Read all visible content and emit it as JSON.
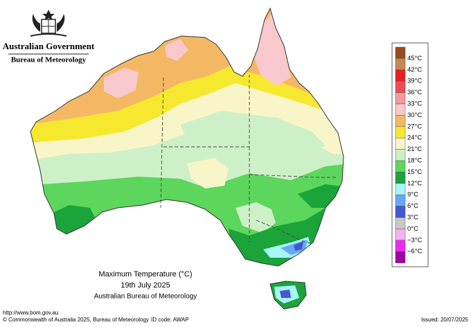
{
  "header": {
    "government": "Australian Government",
    "agency": "Bureau of Meteorology"
  },
  "caption": {
    "title": "Maximum Temperature (°C)",
    "date": "19th July 2025",
    "source": "Australian Bureau of Meteorology"
  },
  "footer": {
    "url": "http://www.bom.gov.au",
    "copyright": "© Commonwealth of Australia 2025, Bureau of Meteorology",
    "id_code": "ID code: AWAP",
    "issued": "Issued: 20/07/2025"
  },
  "legend": {
    "colors": [
      "#9a4a1c",
      "#c48a50",
      "#e42020",
      "#f04a58",
      "#f49a9a",
      "#f8c8cc",
      "#f4b864",
      "#f6e82e",
      "#f8f6c8",
      "#cef0c8",
      "#5cd65c",
      "#1aa43a",
      "#a8f6f8",
      "#68a8f8",
      "#4658d0",
      "#c8c8c8",
      "#f4b0f4",
      "#f028f0",
      "#a000a4"
    ],
    "labels": [
      "45°C",
      "42°C",
      "39°C",
      "36°C",
      "33°C",
      "30°C",
      "27°C",
      "24°C",
      "21°C",
      "18°C",
      "15°C",
      "12°C",
      "9°C",
      "6°C",
      "3°C",
      "0°C",
      "−3°C",
      "−6°C"
    ]
  }
}
